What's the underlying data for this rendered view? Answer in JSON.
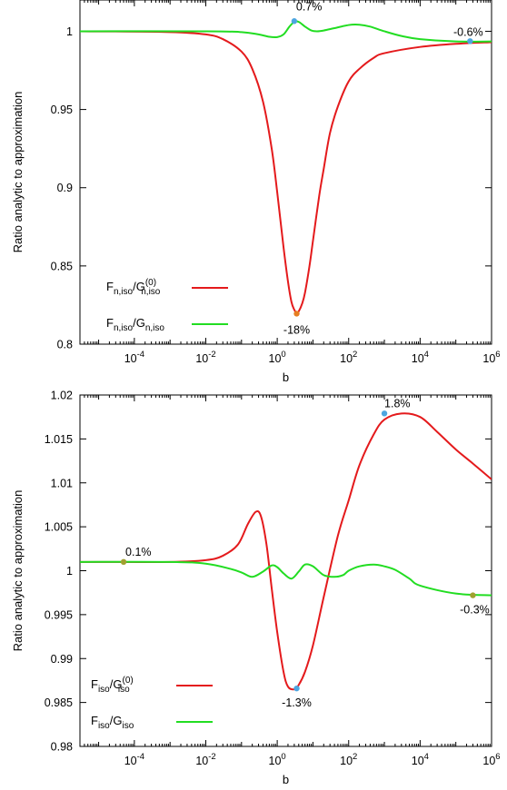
{
  "chart_data": [
    {
      "type": "line",
      "xlabel": "b",
      "ylabel": "Ratio analytic to approximation",
      "xscale": "log",
      "xlim": [
        3e-06,
        1000000.0
      ],
      "ylim": [
        0.8,
        1.02
      ],
      "grid": false,
      "legend_placement": "bottom-left",
      "xticks": [
        {
          "value": 0.0001,
          "base": "10",
          "exp": "-4"
        },
        {
          "value": 0.01,
          "base": "10",
          "exp": "-2"
        },
        {
          "value": 1,
          "base": "10",
          "exp": "0"
        },
        {
          "value": 100,
          "base": "10",
          "exp": "2"
        },
        {
          "value": 10000.0,
          "base": "10",
          "exp": "4"
        },
        {
          "value": 1000000.0,
          "base": "10",
          "exp": "6"
        }
      ],
      "yticks": [
        {
          "value": 0.8,
          "label": "0.8"
        },
        {
          "value": 0.85,
          "label": "0.85"
        },
        {
          "value": 0.9,
          "label": "0.9"
        },
        {
          "value": 0.95,
          "label": "0.95"
        },
        {
          "value": 1,
          "label": "1"
        }
      ],
      "series": [
        {
          "legend": {
            "main": "F",
            "sub1": "n,iso",
            "mid": "/G",
            "sup": "(0)",
            "sub2": "n,iso"
          },
          "color": "#e41a1c",
          "x": [
            3e-06,
            0.001,
            0.01,
            0.03,
            0.1,
            0.2,
            0.4,
            0.7,
            1,
            1.5,
            2,
            2.5,
            3,
            3.5,
            4,
            5,
            6,
            8,
            10,
            15,
            20,
            30,
            50,
            100,
            200,
            500,
            1000,
            10000.0,
            100000.0,
            1000000.0
          ],
          "y": [
            1.0,
            0.9995,
            0.998,
            0.995,
            0.987,
            0.976,
            0.955,
            0.925,
            0.897,
            0.862,
            0.84,
            0.827,
            0.822,
            0.82,
            0.821,
            0.826,
            0.833,
            0.85,
            0.866,
            0.895,
            0.912,
            0.935,
            0.952,
            0.968,
            0.976,
            0.983,
            0.986,
            0.99,
            0.992,
            0.993
          ]
        },
        {
          "legend": {
            "main": "F",
            "sub1": "n,iso",
            "mid": "/G",
            "sup": "",
            "sub2": "n,iso"
          },
          "color": "#22dd22",
          "x": [
            3e-06,
            0.01,
            0.1,
            0.3,
            0.6,
            1,
            1.5,
            2.2,
            3,
            4,
            6,
            9,
            13,
            20,
            40,
            100,
            200,
            400,
            1000,
            3000,
            10000.0,
            100000.0,
            1000000.0
          ],
          "y": [
            1.0,
            1.0,
            0.9995,
            0.998,
            0.9965,
            0.9963,
            0.998,
            1.003,
            1.006,
            1.006,
            1.003,
            1.0005,
            1.0,
            1.0005,
            1.002,
            1.004,
            1.0042,
            1.003,
            1.0,
            0.997,
            0.995,
            0.9935,
            0.9935
          ]
        }
      ],
      "annotations": [
        {
          "text": "0.7%",
          "x": 3,
          "y": 1.0065,
          "dx": 2,
          "dy": -12,
          "anchor": "start",
          "color": "#4da6e0"
        },
        {
          "text": "-0.6%",
          "x": 250000,
          "y": 0.9937,
          "dx": -2,
          "dy": -6,
          "anchor": "middle",
          "color": "#4da6e0"
        },
        {
          "text": "-18%",
          "x": 3.5,
          "y": 0.8195,
          "dx": 0,
          "dy": 22,
          "anchor": "middle",
          "color": "#e67e22"
        }
      ]
    },
    {
      "type": "line",
      "xlabel": "b",
      "ylabel": "Ratio analytic to approximation",
      "xscale": "log",
      "xlim": [
        3e-06,
        1000000.0
      ],
      "ylim": [
        0.98,
        1.02
      ],
      "grid": false,
      "legend_placement": "bottom-left",
      "xticks": [
        {
          "value": 0.0001,
          "base": "10",
          "exp": "-4"
        },
        {
          "value": 0.01,
          "base": "10",
          "exp": "-2"
        },
        {
          "value": 1,
          "base": "10",
          "exp": "0"
        },
        {
          "value": 100,
          "base": "10",
          "exp": "2"
        },
        {
          "value": 10000.0,
          "base": "10",
          "exp": "4"
        },
        {
          "value": 1000000.0,
          "base": "10",
          "exp": "6"
        }
      ],
      "yticks": [
        {
          "value": 0.98,
          "label": "0.98"
        },
        {
          "value": 0.985,
          "label": "0.985"
        },
        {
          "value": 0.99,
          "label": "0.99"
        },
        {
          "value": 0.995,
          "label": "0.995"
        },
        {
          "value": 1,
          "label": "1"
        },
        {
          "value": 1.005,
          "label": "1.005"
        },
        {
          "value": 1.01,
          "label": "1.01"
        },
        {
          "value": 1.015,
          "label": "1.015"
        },
        {
          "value": 1.02,
          "label": "1.02"
        }
      ],
      "series": [
        {
          "legend": {
            "main": "F",
            "sub1": "iso",
            "mid": "/G",
            "sup": "(0)",
            "sub2": "iso"
          },
          "color": "#e41a1c",
          "x": [
            3e-06,
            0.001,
            0.01,
            0.03,
            0.08,
            0.15,
            0.25,
            0.35,
            0.5,
            0.7,
            1,
            1.5,
            2,
            3,
            4,
            6,
            10,
            20,
            50,
            100,
            200,
            500,
            1000,
            3000,
            10000,
            30000,
            100000,
            300000,
            1000000.0
          ],
          "y": [
            1.001,
            1.001,
            1.0012,
            1.0017,
            1.003,
            1.0053,
            1.0067,
            1.0062,
            1.003,
            0.998,
            0.993,
            0.9885,
            0.9868,
            0.9865,
            0.987,
            0.9885,
            0.9915,
            0.997,
            1.004,
            1.008,
            1.012,
            1.0155,
            1.0172,
            1.0179,
            1.0175,
            1.0158,
            1.0138,
            1.0122,
            1.0104
          ]
        },
        {
          "legend": {
            "main": "F",
            "sub1": "iso",
            "mid": "/G",
            "sup": "",
            "sub2": "iso"
          },
          "color": "#22dd22",
          "x": [
            3e-06,
            0.001,
            0.01,
            0.05,
            0.1,
            0.2,
            0.4,
            0.7,
            1,
            1.5,
            2.5,
            4,
            6,
            10,
            20,
            40,
            70,
            100,
            200,
            500,
            1000,
            2000,
            5000,
            10000,
            100000,
            1000000.0
          ],
          "y": [
            1.001,
            1.001,
            1.0008,
            1.0002,
            0.9998,
            0.9993,
            0.9999,
            1.0006,
            1.0004,
            0.9997,
            0.9991,
            0.9999,
            1.0007,
            1.0005,
            0.9995,
            0.9993,
            0.9995,
            1.0,
            1.0005,
            1.0007,
            1.0005,
            1.0001,
            0.9991,
            0.9983,
            0.9974,
            0.9972
          ]
        }
      ],
      "annotations": [
        {
          "text": "1.8%",
          "x": 1000,
          "y": 1.0179,
          "dx": 0,
          "dy": -7,
          "anchor": "start",
          "color": "#4da6e0"
        },
        {
          "text": "-1.3%",
          "x": 3.5,
          "y": 0.9866,
          "dx": 0,
          "dy": 20,
          "anchor": "middle",
          "color": "#4da6e0"
        },
        {
          "text": "0.1%",
          "x": 5e-05,
          "y": 1.001,
          "dx": 2,
          "dy": -7,
          "anchor": "start",
          "color": "#a0a030"
        },
        {
          "text": "-0.3%",
          "x": 300000,
          "y": 0.9972,
          "dx": 2,
          "dy": 20,
          "anchor": "middle",
          "color": "#a0a030"
        }
      ]
    }
  ]
}
